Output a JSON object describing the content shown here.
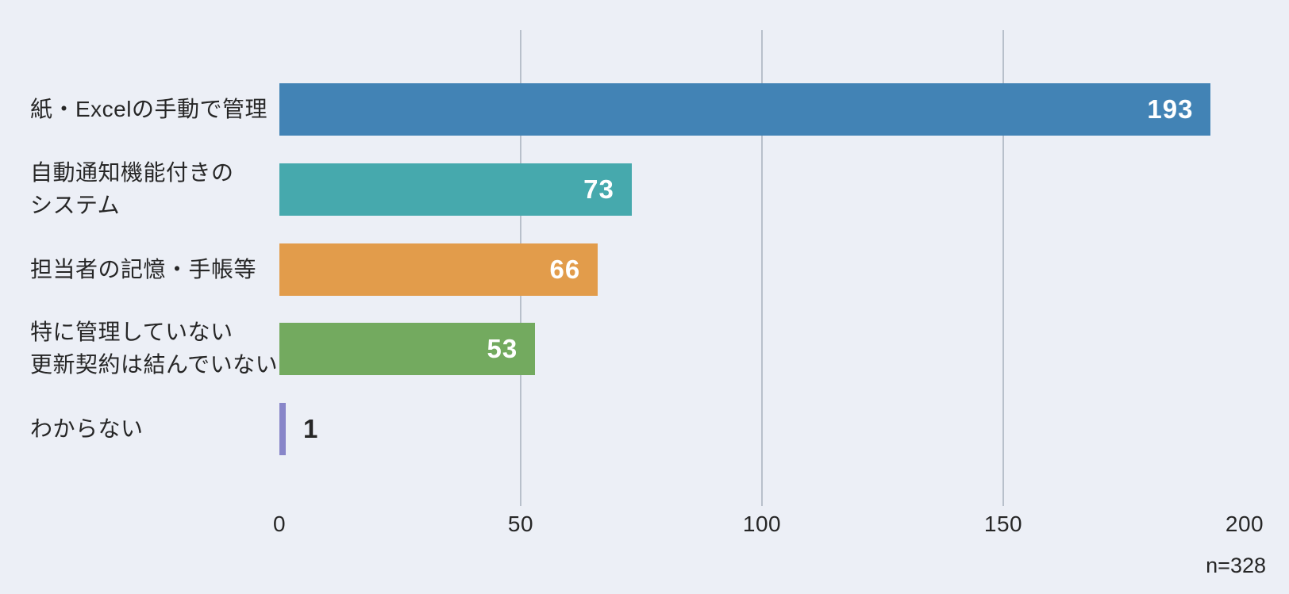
{
  "colors": {
    "background": "#ECEFF6",
    "gridline": "#B8C0CB",
    "text": "#262626",
    "value_label_light": "#FFFFFF"
  },
  "chart_data": {
    "type": "bar",
    "orientation": "horizontal",
    "title": "",
    "xlabel": "",
    "ylabel": "",
    "categories": [
      "紙・Excelの手動で管理",
      "自動通知機能付きの\nシステム",
      "担当者の記憶・手帳等",
      "特に管理していない\n更新契約は結んでいない",
      "わからない"
    ],
    "values": [
      193,
      73,
      66,
      53,
      1
    ],
    "bar_colors": [
      "#4283B5",
      "#46A9AD",
      "#E29C4B",
      "#73AA5F",
      "#8886C9"
    ],
    "value_label_position": "bar-end",
    "xlim": [
      0,
      200
    ],
    "x_tick_values": [
      0,
      50,
      100,
      150,
      200
    ],
    "x_tick_labels": [
      "0",
      "50",
      "100",
      "150",
      "200"
    ],
    "gridline_values": [
      50,
      100,
      150
    ],
    "grid": true,
    "legend": "none",
    "annotation": "n=328"
  }
}
